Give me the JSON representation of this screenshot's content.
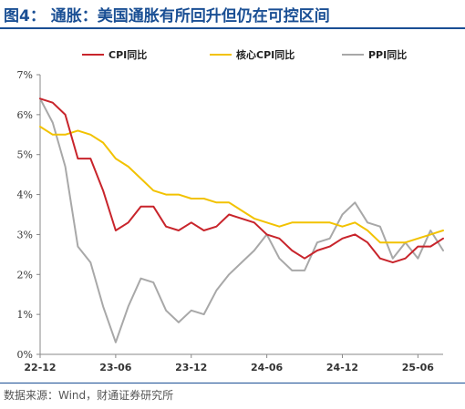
{
  "header": {
    "title": "图4： 通胀：美国通胀有所回升但仍在可控区间",
    "color": "#1a4f94"
  },
  "footer": {
    "source": "数据来源：Wind，财通证券研究所"
  },
  "chart_data": {
    "type": "line",
    "x": [
      "22-12",
      "23-01",
      "23-02",
      "23-03",
      "23-04",
      "23-05",
      "23-06",
      "23-07",
      "23-08",
      "23-09",
      "23-10",
      "23-11",
      "23-12",
      "24-01",
      "24-02",
      "24-03",
      "24-04",
      "24-05",
      "24-06",
      "24-07",
      "24-08",
      "24-09",
      "24-10",
      "24-11",
      "24-12",
      "25-01",
      "25-02",
      "25-03",
      "25-04",
      "25-05",
      "25-06",
      "25-07",
      "25-08"
    ],
    "x_tick_labels": [
      "22-12",
      "23-06",
      "23-12",
      "24-06",
      "24-12",
      "25-06"
    ],
    "y_tick_labels": [
      "0%",
      "1%",
      "2%",
      "3%",
      "4%",
      "5%",
      "6%",
      "7%"
    ],
    "ylim": [
      0,
      7
    ],
    "legend_position": "top",
    "series": [
      {
        "name": "CPI同比",
        "color": "#c8242b",
        "values": [
          6.4,
          6.3,
          6.0,
          4.9,
          4.9,
          4.1,
          3.1,
          3.3,
          3.7,
          3.7,
          3.2,
          3.1,
          3.3,
          3.1,
          3.2,
          3.5,
          3.4,
          3.3,
          3.0,
          2.9,
          2.6,
          2.4,
          2.6,
          2.7,
          2.9,
          3.0,
          2.8,
          2.4,
          2.3,
          2.4,
          2.7,
          2.7,
          2.9
        ]
      },
      {
        "name": "核心CPI同比",
        "color": "#f2c200",
        "values": [
          5.7,
          5.5,
          5.5,
          5.6,
          5.5,
          5.3,
          4.9,
          4.7,
          4.4,
          4.1,
          4.0,
          4.0,
          3.9,
          3.9,
          3.8,
          3.8,
          3.6,
          3.4,
          3.3,
          3.2,
          3.3,
          3.3,
          3.3,
          3.3,
          3.2,
          3.3,
          3.1,
          2.8,
          2.8,
          2.8,
          2.9,
          3.0,
          3.1
        ]
      },
      {
        "name": "PPI同比",
        "color": "#a8a8a8",
        "values": [
          6.4,
          5.8,
          4.7,
          2.7,
          2.3,
          1.2,
          0.3,
          1.2,
          1.9,
          1.8,
          1.1,
          0.8,
          1.1,
          1.0,
          1.6,
          2.0,
          2.3,
          2.6,
          3.0,
          2.4,
          2.1,
          2.1,
          2.8,
          2.9,
          3.5,
          3.8,
          3.3,
          3.2,
          2.4,
          2.8,
          2.4,
          3.1,
          2.6
        ]
      }
    ]
  }
}
